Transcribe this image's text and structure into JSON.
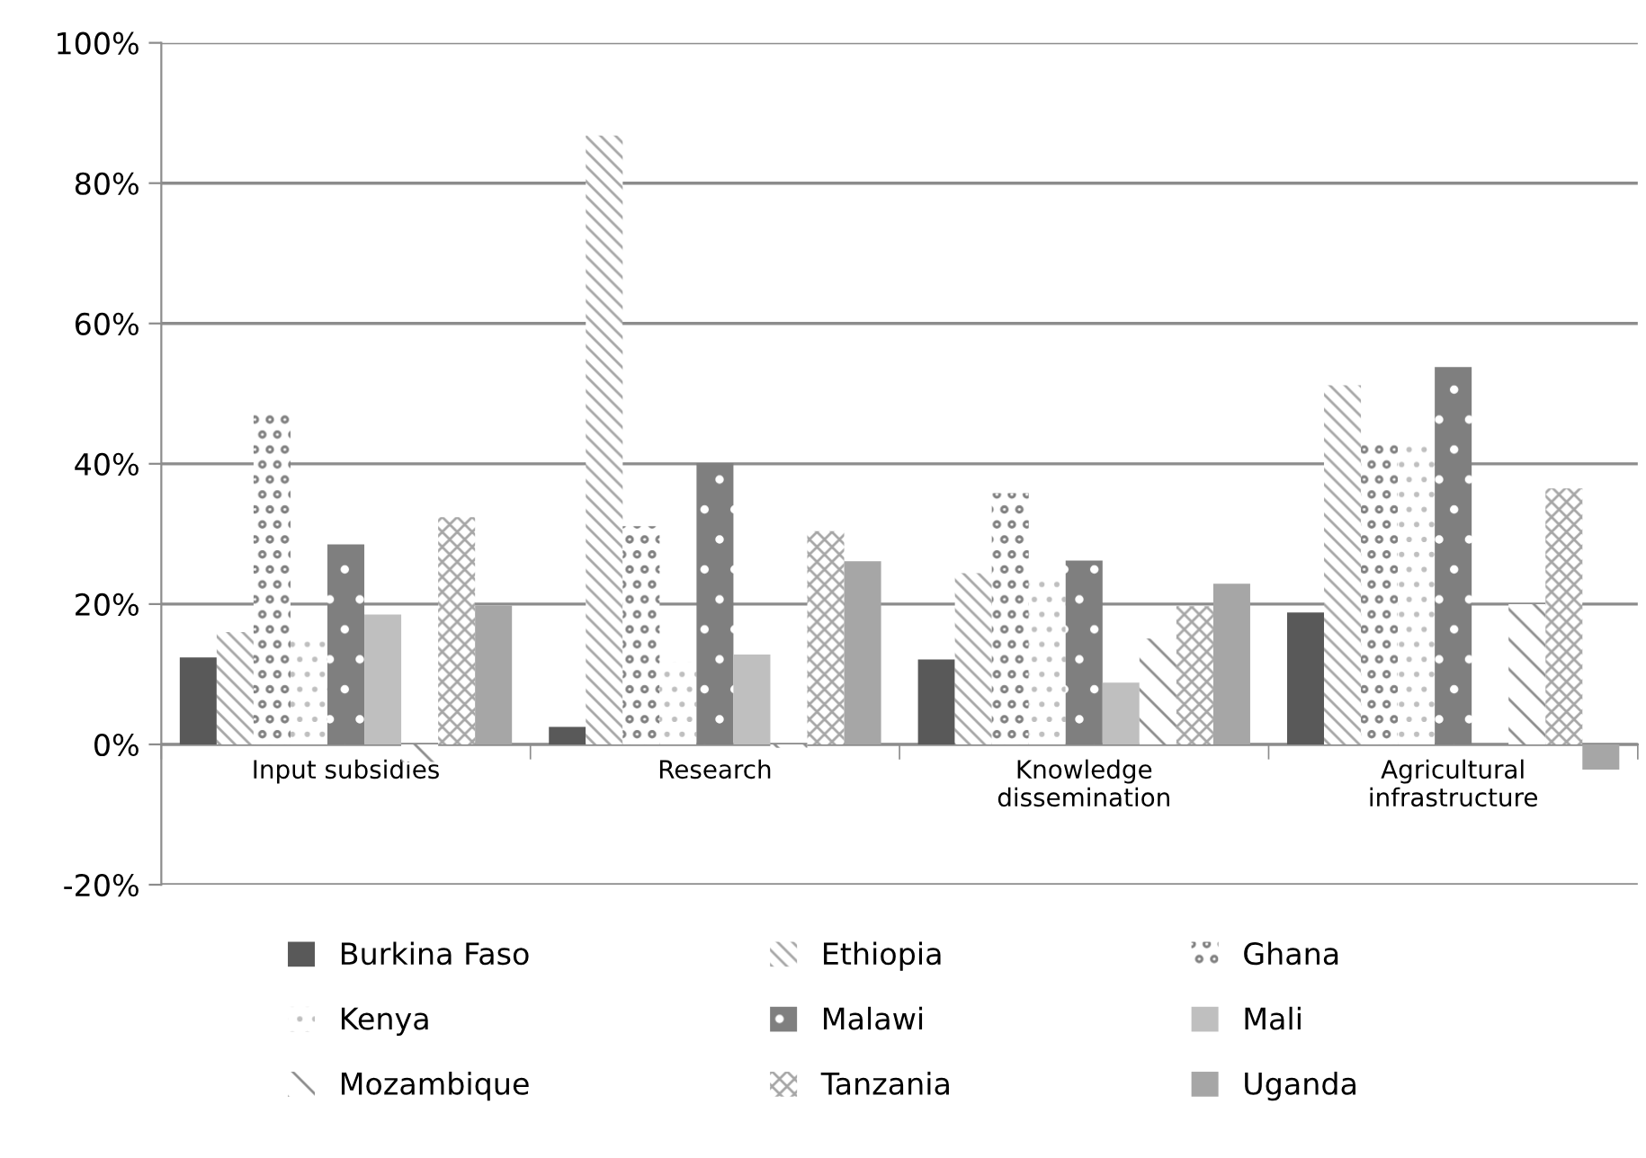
{
  "chart_data": {
    "type": "bar",
    "categories": [
      "Input subsidies",
      "Research",
      "Knowledge\ndissemination",
      "Agricultural\ninfrastructure"
    ],
    "series": [
      {
        "name": "Burkina Faso",
        "color": "#595959",
        "values": [
          12.4,
          2.5,
          12.1,
          18.8
        ]
      },
      {
        "name": "Ethiopia",
        "color": "#a6a6a6",
        "values": [
          16,
          86.8,
          24.4,
          51.2
        ]
      },
      {
        "name": "Ghana",
        "color": "#808080",
        "values": [
          47.4,
          31.1,
          35.8,
          43
        ]
      },
      {
        "name": "Kenya",
        "color": "#bfbfbf",
        "values": [
          14.7,
          11.7,
          23.8,
          43
        ]
      },
      {
        "name": "Malawi",
        "color": "#7f7f7f",
        "values": [
          28.5,
          40.1,
          26.2,
          53.8
        ]
      },
      {
        "name": "Mali",
        "color": "#bfbfbf",
        "values": [
          18.5,
          12.8,
          8.8,
          0
        ]
      },
      {
        "name": "Mozambique",
        "color": "#8c8c8c",
        "values": [
          -2.5,
          -0.5,
          15.1,
          20
        ]
      },
      {
        "name": "Tanzania",
        "color": "#a6a6a6",
        "values": [
          32.4,
          30.4,
          19.7,
          36.5
        ]
      },
      {
        "name": "Uganda",
        "color": "#a6a6a6",
        "values": [
          19.8,
          26.1,
          22.9,
          -3.6
        ]
      }
    ],
    "ylim": [
      -20,
      100
    ],
    "yticks": [
      {
        "value": -20,
        "label": "-20%"
      },
      {
        "value": 0,
        "label": "0%"
      },
      {
        "value": 20,
        "label": "20%"
      },
      {
        "value": 40,
        "label": "40%"
      },
      {
        "value": 60,
        "label": "60%"
      },
      {
        "value": 80,
        "label": "80%"
      },
      {
        "value": 100,
        "label": "100%"
      }
    ],
    "grid": "y",
    "legend": "bottom"
  }
}
